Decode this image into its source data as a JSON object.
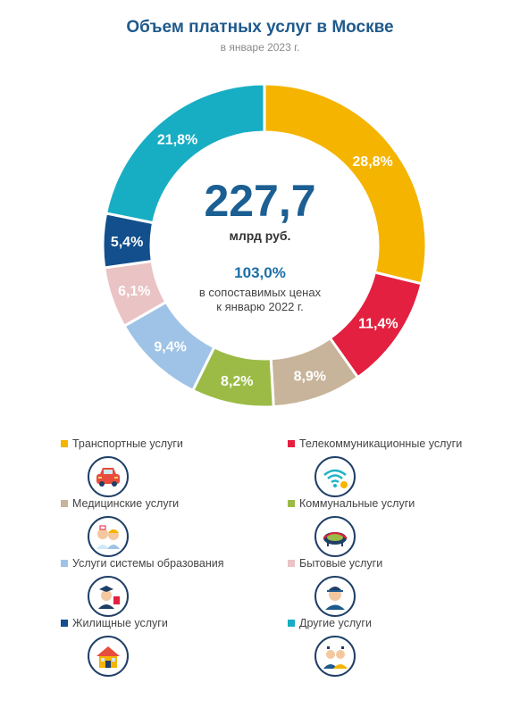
{
  "header": {
    "title": "Объем платных услуг в Москве",
    "subtitle": "в январе 2023 г."
  },
  "center": {
    "total": "227,7",
    "unit": "млрд руб.",
    "growth": "103,0%",
    "note_line1": "в сопоставимых ценах",
    "note_line2": "к январю 2022 г."
  },
  "chart_data": {
    "type": "pie",
    "categories": [
      "Транспортные услуги",
      "Телекоммуникационные услуги",
      "Медицинские услуги",
      "Коммунальные услуги",
      "Услуги системы образования",
      "Бытовые услуги",
      "Жилищные услуги",
      "Другие услуги"
    ],
    "values": [
      28.8,
      11.4,
      8.9,
      8.2,
      9.4,
      6.1,
      5.4,
      21.8
    ],
    "value_labels": [
      "28,8%",
      "11,4%",
      "8,9%",
      "8,2%",
      "9,4%",
      "6,1%",
      "5,4%",
      "21,8%"
    ],
    "colors": [
      "#f5b400",
      "#e3203f",
      "#c8b49a",
      "#9bbb46",
      "#9ec3e6",
      "#eac3c4",
      "#124f8c",
      "#17aec4"
    ],
    "legend_position": "bottom"
  },
  "legend": [
    {
      "label": "Транспортные  услуги",
      "color": "#f5b400",
      "icon": "car-icon"
    },
    {
      "label": "Телекоммуникационные  услуги",
      "color": "#e3203f",
      "icon": "wifi-icon"
    },
    {
      "label": "Медицинские услуги",
      "color": "#c8b49a",
      "icon": "doctor-icon"
    },
    {
      "label": "Коммунальные услуги",
      "color": "#9bbb46",
      "icon": "stadium-icon"
    },
    {
      "label": "Услуги системы образования",
      "color": "#9ec3e6",
      "icon": "graduate-icon"
    },
    {
      "label": "Бытовые услуги",
      "color": "#eac3c4",
      "icon": "repairman-icon"
    },
    {
      "label": "Жилищные услуги",
      "color": "#124f8c",
      "icon": "house-icon"
    },
    {
      "label": "Другие услуги",
      "color": "#17aec4",
      "icon": "people-icon"
    }
  ]
}
